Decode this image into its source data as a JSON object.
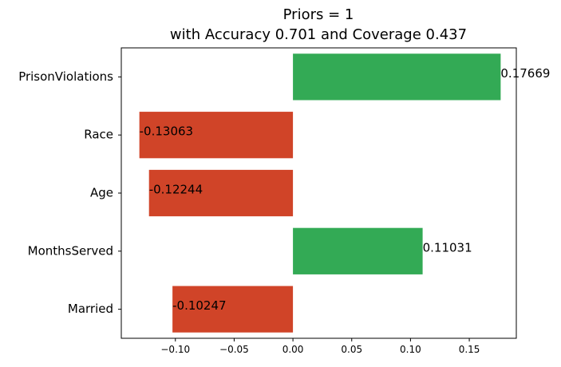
{
  "chart_data": {
    "type": "bar",
    "orientation": "horizontal",
    "title": "Priors = 1",
    "subtitle": "with Accuracy 0.701 and Coverage 0.437",
    "categories": [
      "PrisonViolations",
      "Race",
      "Age",
      "MonthsServed",
      "Married"
    ],
    "values": [
      0.17669,
      -0.13063,
      -0.12244,
      0.11031,
      -0.10247
    ],
    "data_labels": [
      "0.17669",
      "-0.13063",
      "-0.12244",
      "0.11031",
      "-0.10247"
    ],
    "xticks": [
      -0.1,
      -0.05,
      0.0,
      0.05,
      0.1,
      0.15
    ],
    "xtick_labels": [
      "−0.10",
      "−0.05",
      "0.00",
      "0.05",
      "0.10",
      "0.15"
    ],
    "xlim": [
      -0.146,
      0.19
    ],
    "xlabel": "",
    "ylabel": "",
    "grid": false,
    "colors": {
      "positive": "#33aa55",
      "negative": "#d04428"
    }
  }
}
